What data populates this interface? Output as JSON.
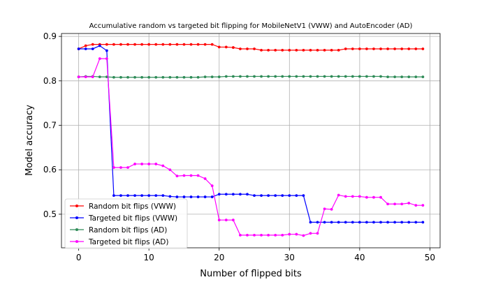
{
  "chart_data": {
    "type": "line",
    "title": "Accumulative random vs targeted bit flipping for MobileNetV1 (VWW) and AutoEncoder (AD)",
    "xlabel": "Number of flipped bits",
    "ylabel": "Model accuracy",
    "xlim": [
      -2.45,
      51.45
    ],
    "ylim": [
      0.4245,
      0.9065
    ],
    "xticks": [
      0,
      10,
      20,
      30,
      40,
      50
    ],
    "xtick_labels": [
      "0",
      "10",
      "20",
      "30",
      "40",
      "50"
    ],
    "yticks": [
      0.5,
      0.6,
      0.7,
      0.8,
      0.9
    ],
    "ytick_labels": [
      "0.5",
      "0.6",
      "0.7",
      "0.8",
      "0.9"
    ],
    "grid": true,
    "legend_position": "lower-left",
    "x": [
      0,
      1,
      2,
      3,
      4,
      5,
      6,
      7,
      8,
      9,
      10,
      11,
      12,
      13,
      14,
      15,
      16,
      17,
      18,
      19,
      20,
      21,
      22,
      23,
      24,
      25,
      26,
      27,
      28,
      29,
      30,
      31,
      32,
      33,
      34,
      35,
      36,
      37,
      38,
      39,
      40,
      41,
      42,
      43,
      44,
      45,
      46,
      47,
      48,
      49
    ],
    "series": [
      {
        "name": "Random bit flips (VWW)",
        "color": "#ff0000",
        "values": [
          0.872,
          0.879,
          0.882,
          0.882,
          0.882,
          0.882,
          0.882,
          0.882,
          0.882,
          0.882,
          0.882,
          0.882,
          0.882,
          0.882,
          0.882,
          0.882,
          0.882,
          0.882,
          0.882,
          0.882,
          0.876,
          0.876,
          0.875,
          0.872,
          0.872,
          0.872,
          0.869,
          0.869,
          0.869,
          0.869,
          0.869,
          0.869,
          0.869,
          0.869,
          0.869,
          0.869,
          0.869,
          0.869,
          0.872,
          0.872,
          0.872,
          0.872,
          0.872,
          0.872,
          0.872,
          0.872,
          0.872,
          0.872,
          0.872,
          0.872
        ]
      },
      {
        "name": "Targeted bit flips (VWW)",
        "color": "#0000ff",
        "values": [
          0.872,
          0.872,
          0.872,
          0.879,
          0.868,
          0.542,
          0.542,
          0.542,
          0.542,
          0.542,
          0.542,
          0.542,
          0.542,
          0.54,
          0.539,
          0.539,
          0.539,
          0.539,
          0.539,
          0.539,
          0.545,
          0.545,
          0.545,
          0.545,
          0.545,
          0.542,
          0.542,
          0.542,
          0.542,
          0.542,
          0.542,
          0.542,
          0.542,
          0.482,
          0.482,
          0.482,
          0.482,
          0.482,
          0.482,
          0.482,
          0.482,
          0.482,
          0.482,
          0.482,
          0.482,
          0.482,
          0.482,
          0.482,
          0.482,
          0.482
        ]
      },
      {
        "name": "Random bit flips (AD)",
        "color": "#2e8b57",
        "values": [
          0.809,
          0.81,
          0.81,
          0.809,
          0.809,
          0.808,
          0.808,
          0.808,
          0.808,
          0.808,
          0.808,
          0.808,
          0.808,
          0.808,
          0.808,
          0.808,
          0.808,
          0.808,
          0.809,
          0.809,
          0.809,
          0.81,
          0.81,
          0.81,
          0.81,
          0.81,
          0.81,
          0.81,
          0.81,
          0.81,
          0.81,
          0.81,
          0.81,
          0.81,
          0.81,
          0.81,
          0.81,
          0.81,
          0.81,
          0.81,
          0.81,
          0.81,
          0.81,
          0.81,
          0.809,
          0.809,
          0.809,
          0.809,
          0.809,
          0.809
        ]
      },
      {
        "name": "Targeted bit flips (AD)",
        "color": "#ff00ff",
        "values": [
          0.809,
          0.809,
          0.809,
          0.85,
          0.85,
          0.605,
          0.605,
          0.605,
          0.613,
          0.613,
          0.613,
          0.613,
          0.609,
          0.6,
          0.586,
          0.587,
          0.587,
          0.587,
          0.58,
          0.564,
          0.487,
          0.487,
          0.487,
          0.453,
          0.453,
          0.453,
          0.453,
          0.453,
          0.453,
          0.453,
          0.455,
          0.455,
          0.452,
          0.457,
          0.457,
          0.512,
          0.511,
          0.543,
          0.54,
          0.54,
          0.54,
          0.538,
          0.538,
          0.538,
          0.523,
          0.523,
          0.523,
          0.525,
          0.52,
          0.52
        ]
      }
    ]
  }
}
